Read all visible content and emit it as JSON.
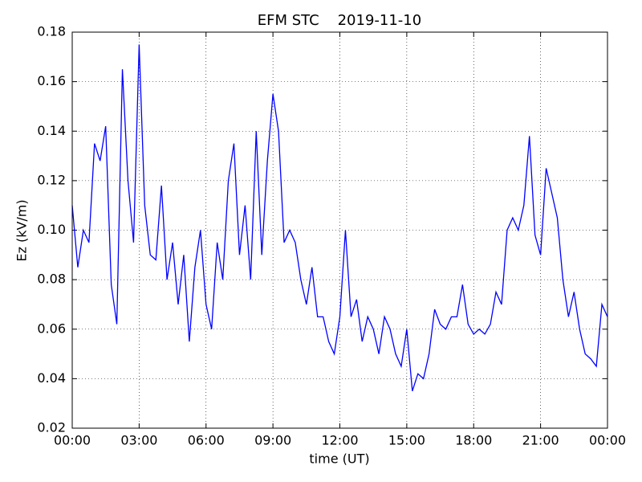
{
  "chart_data": {
    "type": "line",
    "title": "EFM STC    2019-11-10",
    "xlabel": "time (UT)",
    "ylabel": "Ez (kV/m)",
    "x": [
      0,
      0.25,
      0.5,
      0.75,
      1,
      1.25,
      1.5,
      1.75,
      2,
      2.25,
      2.5,
      2.75,
      3,
      3.25,
      3.5,
      3.75,
      4,
      4.25,
      4.5,
      4.75,
      5,
      5.25,
      5.5,
      5.75,
      6,
      6.25,
      6.5,
      6.75,
      7,
      7.25,
      7.5,
      7.75,
      8,
      8.25,
      8.5,
      8.75,
      9,
      9.25,
      9.5,
      9.75,
      10,
      10.25,
      10.5,
      10.75,
      11,
      11.25,
      11.5,
      11.75,
      12,
      12.25,
      12.5,
      12.75,
      13,
      13.25,
      13.5,
      13.75,
      14,
      14.25,
      14.5,
      14.75,
      15,
      15.25,
      15.5,
      15.75,
      16,
      16.25,
      16.5,
      16.75,
      17,
      17.25,
      17.5,
      17.75,
      18,
      18.25,
      18.5,
      18.75,
      19,
      19.25,
      19.5,
      19.75,
      20,
      20.25,
      20.5,
      20.75,
      21,
      21.25,
      21.5,
      21.75,
      22,
      22.25,
      22.5,
      22.75,
      23,
      23.25,
      23.5,
      23.75,
      24
    ],
    "series": [
      {
        "name": "Ez",
        "color": "#0000ff",
        "values": [
          0.11,
          0.085,
          0.1,
          0.095,
          0.135,
          0.128,
          0.142,
          0.078,
          0.062,
          0.165,
          0.12,
          0.095,
          0.175,
          0.11,
          0.09,
          0.088,
          0.118,
          0.08,
          0.095,
          0.07,
          0.09,
          0.055,
          0.085,
          0.1,
          0.07,
          0.06,
          0.095,
          0.08,
          0.12,
          0.135,
          0.09,
          0.11,
          0.08,
          0.14,
          0.09,
          0.128,
          0.155,
          0.14,
          0.095,
          0.1,
          0.095,
          0.08,
          0.07,
          0.085,
          0.065,
          0.065,
          0.055,
          0.05,
          0.065,
          0.1,
          0.065,
          0.072,
          0.055,
          0.065,
          0.06,
          0.05,
          0.065,
          0.06,
          0.05,
          0.045,
          0.06,
          0.035,
          0.042,
          0.04,
          0.05,
          0.068,
          0.062,
          0.06,
          0.065,
          0.065,
          0.078,
          0.062,
          0.058,
          0.06,
          0.058,
          0.062,
          0.075,
          0.07,
          0.1,
          0.105,
          0.1,
          0.11,
          0.138,
          0.098,
          0.09,
          0.125,
          0.115,
          0.105,
          0.08,
          0.065,
          0.075,
          0.06,
          0.05,
          0.048,
          0.045,
          0.07,
          0.065
        ]
      }
    ],
    "xlim": [
      0,
      24
    ],
    "xticks": [
      {
        "value": 0,
        "label": "00:00"
      },
      {
        "value": 3,
        "label": "03:00"
      },
      {
        "value": 6,
        "label": "06:00"
      },
      {
        "value": 9,
        "label": "09:00"
      },
      {
        "value": 12,
        "label": "12:00"
      },
      {
        "value": 15,
        "label": "15:00"
      },
      {
        "value": 18,
        "label": "18:00"
      },
      {
        "value": 21,
        "label": "21:00"
      },
      {
        "value": 24,
        "label": "00:00"
      }
    ],
    "ylim": [
      0.02,
      0.18
    ],
    "yticks": [
      0.02,
      0.04,
      0.06,
      0.08,
      {
        "value": 0.1,
        "label": "0.10"
      },
      0.12,
      0.14,
      0.16,
      0.18
    ],
    "grid": true
  }
}
